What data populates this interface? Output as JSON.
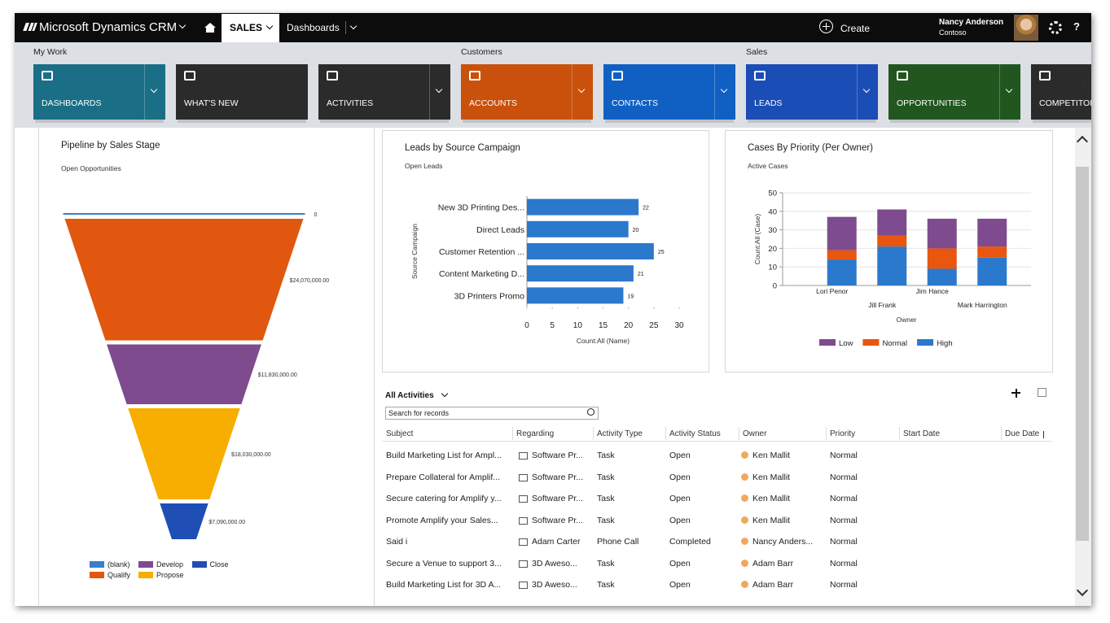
{
  "nav": {
    "brand": "Microsoft Dynamics CRM",
    "area": "SALES",
    "section": "Dashboards",
    "create": "Create",
    "user": "Nancy Anderson",
    "organization": "Contoso",
    "help": "?"
  },
  "groups": [
    {
      "label": "My Work",
      "tiles": [
        {
          "label": "DASHBOARDS",
          "color": "#1a6e86",
          "menu": true
        },
        {
          "label": "WHAT'S NEW",
          "color": "#2b2b2b",
          "menu": false
        },
        {
          "label": "ACTIVITIES",
          "color": "#2b2b2b",
          "menu": true
        }
      ]
    },
    {
      "label": "Customers",
      "tiles": [
        {
          "label": "ACCOUNTS",
          "color": "#c9510c",
          "menu": true
        },
        {
          "label": "CONTACTS",
          "color": "#1060c4",
          "menu": true
        }
      ]
    },
    {
      "label": "Sales",
      "tiles": [
        {
          "label": "LEADS",
          "color": "#1a4db5",
          "menu": true
        },
        {
          "label": "OPPORTUNITIES",
          "color": "#21561f",
          "menu": true
        },
        {
          "label": "COMPETITORS",
          "color": "#2b2b2b",
          "menu": false
        }
      ]
    }
  ],
  "chart_data": [
    {
      "type": "funnel",
      "title": "Pipeline by Sales Stage",
      "subtitle": "Open Opportunities",
      "categories": [
        "(blank)",
        "Qualify",
        "Develop",
        "Propose",
        "Close"
      ],
      "values": [
        0,
        24070000,
        11830000,
        18030000,
        7090000
      ],
      "value_labels": [
        "0",
        "$24,070,000.00",
        "$11,830,000.00",
        "$18,030,000.00",
        "$7,090,000.00"
      ],
      "colors": [
        "#3b7fc4",
        "#e1570f",
        "#7d4b8e",
        "#f7ae00",
        "#1f4fb5"
      ]
    },
    {
      "type": "bar",
      "orientation": "horizontal",
      "title": "Leads by Source Campaign",
      "subtitle": "Open Leads",
      "categories": [
        "New 3D Printing Des...",
        "Direct Leads",
        "Customer Retention ...",
        "Content Marketing D...",
        "3D Printers Promo"
      ],
      "values": [
        22,
        20,
        25,
        21,
        19
      ],
      "color": "#2b79cc",
      "xlim": [
        0,
        30
      ],
      "xticks": [
        0,
        5,
        10,
        15,
        20,
        25,
        30
      ],
      "xlabel": "Count:All (Name)",
      "ylabel": "Source Campaign"
    },
    {
      "type": "bar",
      "stacked": true,
      "title": "Cases By Priority (Per Owner)",
      "subtitle": "Active Cases",
      "categories": [
        "Lori Penor",
        "Jill Frank",
        "Jim Hance",
        "Mark Harrington"
      ],
      "series": [
        {
          "name": "Low",
          "color": "#7d4b8e",
          "values": [
            18,
            14,
            16,
            15
          ]
        },
        {
          "name": "Normal",
          "color": "#e8560f",
          "values": [
            5,
            6,
            11,
            6
          ]
        },
        {
          "name": "High",
          "color": "#2b79cc",
          "values": [
            14,
            21,
            9,
            15
          ]
        }
      ],
      "ylim": [
        0,
        50
      ],
      "yticks": [
        0,
        10,
        20,
        30,
        40,
        50
      ],
      "xlabel": "Owner",
      "ylabel": "Count:All (Case)",
      "grid": true
    }
  ],
  "activities": {
    "title": "All Activities",
    "search_placeholder": "Search for records",
    "columns": [
      "Subject",
      "Regarding",
      "Activity Type",
      "Activity Status",
      "Owner",
      "Priority",
      "Start Date",
      "Due Date"
    ],
    "rows": [
      [
        "Build Marketing List for Ampl...",
        "Software Pr...",
        "Task",
        "Open",
        "Ken Mallit",
        "Normal"
      ],
      [
        "Prepare Collateral for Amplif...",
        "Software Pr...",
        "Task",
        "Open",
        "Ken Mallit",
        "Normal"
      ],
      [
        "Secure catering for Amplify y...",
        "Software Pr...",
        "Task",
        "Open",
        "Ken Mallit",
        "Normal"
      ],
      [
        "Promote Amplify your Sales...",
        "Software Pr...",
        "Task",
        "Open",
        "Ken Mallit",
        "Normal"
      ],
      [
        "Said i",
        "Adam Carter",
        "Phone Call",
        "Completed",
        "Nancy Anders...",
        "Normal"
      ],
      [
        "Secure a Venue to support 3...",
        "3D Aweso...",
        "Task",
        "Open",
        "Adam Barr",
        "Normal"
      ],
      [
        "Build Marketing List for 3D A...",
        "3D Aweso...",
        "Task",
        "Open",
        "Adam Barr",
        "Normal"
      ]
    ]
  }
}
